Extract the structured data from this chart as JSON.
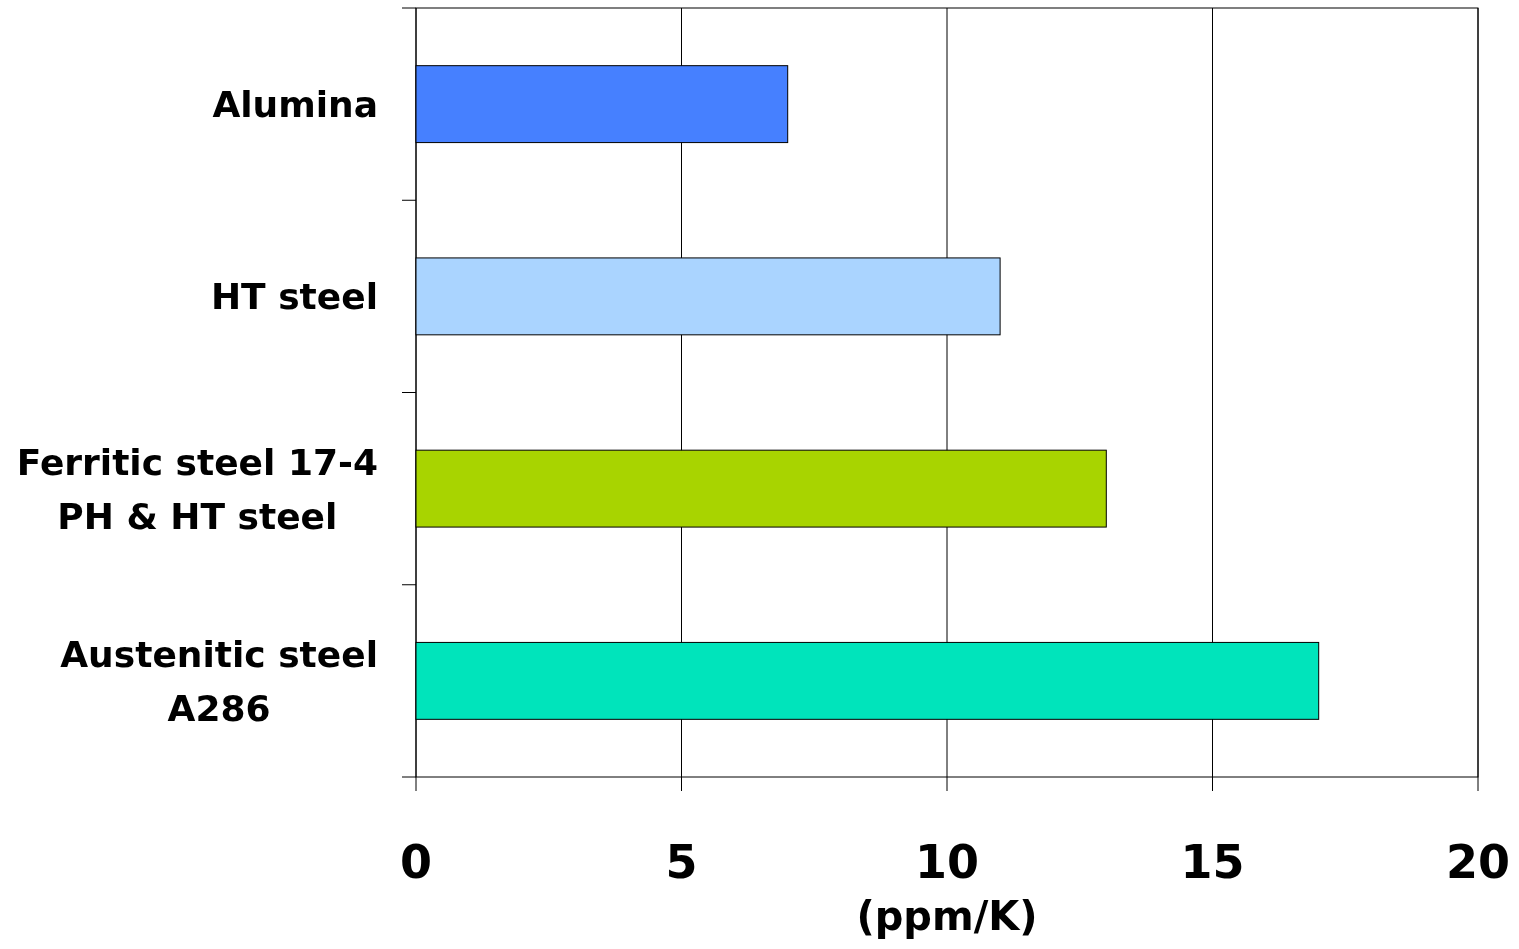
{
  "chart_data": {
    "type": "bar",
    "orientation": "horizontal",
    "xlabel": "(ppm/K)",
    "categories": [
      "Alumina",
      "HT steel",
      "Ferritic steel 17-4 PH & HT steel",
      "Austenitic steel A286"
    ],
    "values": [
      7,
      11,
      13,
      17
    ],
    "colors": [
      "#4680ff",
      "#aad4ff",
      "#a8d400",
      "#00e4bb"
    ],
    "xlim": [
      0,
      20
    ],
    "xticks": [
      0,
      5,
      10,
      15,
      20
    ],
    "grid": "x"
  }
}
